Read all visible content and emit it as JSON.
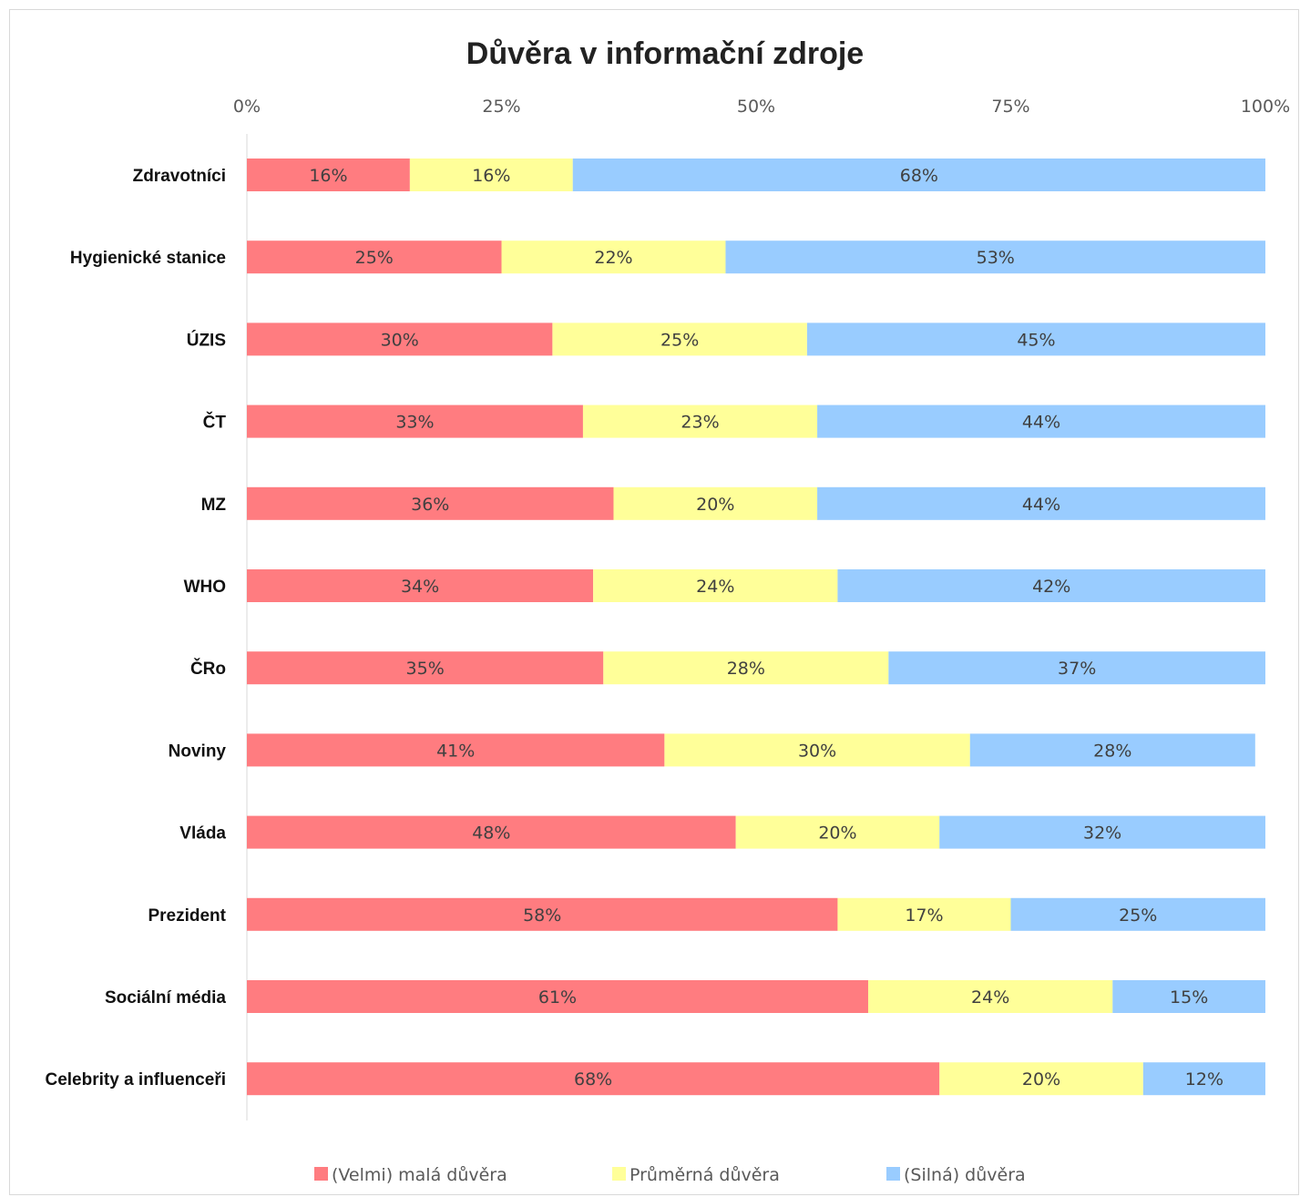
{
  "chart_data": {
    "type": "bar",
    "orientation": "horizontal",
    "stacked": "percent",
    "title": "Důvěra v informační zdroje",
    "xlim": [
      0,
      100
    ],
    "x_ticks": [
      "0%",
      "25%",
      "50%",
      "75%",
      "100%"
    ],
    "x_axis_position": "top",
    "legend_position": "bottom",
    "grid": false,
    "categories": [
      "Zdravotníci",
      "Hygienické stanice",
      "ÚZIS",
      "ČT",
      "MZ",
      "WHO",
      "ČRo",
      "Noviny",
      "Vláda",
      "Prezident",
      "Sociální média",
      "Celebrity a influenceři"
    ],
    "series": [
      {
        "name": "(Velmi) malá důvěra",
        "color": "#ff7c80",
        "values": [
          16,
          25,
          30,
          33,
          36,
          34,
          35,
          41,
          48,
          58,
          61,
          68
        ],
        "labels": [
          "16%",
          "25%",
          "30%",
          "33%",
          "36%",
          "34%",
          "35%",
          "41%",
          "48%",
          "58%",
          "61%",
          "68%"
        ]
      },
      {
        "name": "Průměrná důvěra",
        "color": "#ffff99",
        "values": [
          16,
          22,
          25,
          23,
          20,
          24,
          28,
          30,
          20,
          17,
          24,
          20
        ],
        "labels": [
          "16%",
          "22%",
          "25%",
          "23%",
          "20%",
          "24%",
          "28%",
          "30%",
          "20%",
          "17%",
          "24%",
          "20%"
        ]
      },
      {
        "name": "(Silná) důvěra",
        "color": "#99ccff",
        "values": [
          68,
          53,
          45,
          44,
          44,
          42,
          37,
          28,
          32,
          25,
          15,
          12
        ],
        "labels": [
          "68%",
          "53%",
          "45%",
          "44%",
          "44%",
          "42%",
          "37%",
          "28%",
          "32%",
          "25%",
          "15%",
          "12%"
        ]
      }
    ]
  }
}
